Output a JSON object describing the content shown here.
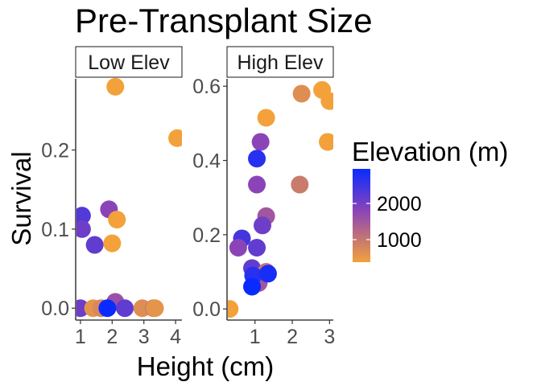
{
  "chart_data": {
    "type": "scatter",
    "title": "Pre-Transplant Size",
    "xlabel": "Height (cm)",
    "ylabel": "Survival",
    "legend": {
      "title": "Elevation (m)",
      "placement": "right",
      "labels": [
        "2000",
        "1000"
      ],
      "color_low": "#f3a13a",
      "color_mid": "#8b44b8",
      "color_high": "#0a2bff"
    },
    "panels": [
      {
        "strip": "Low Elev",
        "xlim": [
          0.85,
          4.2
        ],
        "ylim": [
          -0.015,
          0.29
        ],
        "x_ticks": [
          1,
          2,
          3,
          4
        ],
        "y_ticks": [
          0.0,
          0.1,
          0.2
        ],
        "y_tick_labels": [
          "0.0",
          "0.1",
          "0.2"
        ],
        "points": [
          {
            "x": 2.1,
            "y": 0.28,
            "elev": 500
          },
          {
            "x": 4.05,
            "y": 0.215,
            "elev": 500
          },
          {
            "x": 1.05,
            "y": 0.117,
            "elev": 2400
          },
          {
            "x": 1.05,
            "y": 0.1,
            "elev": 2200
          },
          {
            "x": 1.9,
            "y": 0.125,
            "elev": 2000
          },
          {
            "x": 2.15,
            "y": 0.112,
            "elev": 500
          },
          {
            "x": 1.45,
            "y": 0.08,
            "elev": 2300
          },
          {
            "x": 2.0,
            "y": 0.082,
            "elev": 500
          },
          {
            "x": 1.0,
            "y": 0.0,
            "elev": 2200
          },
          {
            "x": 1.4,
            "y": 0.0,
            "elev": 700
          },
          {
            "x": 1.65,
            "y": 0.0,
            "elev": 900
          },
          {
            "x": 2.1,
            "y": 0.008,
            "elev": 1800
          },
          {
            "x": 2.4,
            "y": 0.0,
            "elev": 2300
          },
          {
            "x": 2.95,
            "y": 0.0,
            "elev": 800
          },
          {
            "x": 3.3,
            "y": 0.0,
            "elev": 1000
          },
          {
            "x": 3.35,
            "y": 0.0,
            "elev": 700
          },
          {
            "x": 1.85,
            "y": 0.0,
            "elev": 2900
          }
        ]
      },
      {
        "strip": "High Elev",
        "xlim": [
          0.25,
          3.1
        ],
        "ylim": [
          -0.03,
          0.62
        ],
        "x_ticks": [
          1,
          2,
          3
        ],
        "y_ticks": [
          0.0,
          0.2,
          0.4,
          0.6
        ],
        "y_tick_labels": [
          "0.0",
          "0.2",
          "0.4",
          "0.6"
        ],
        "points": [
          {
            "x": 0.32,
            "y": 0.0,
            "elev": 500
          },
          {
            "x": 2.25,
            "y": 0.58,
            "elev": 800
          },
          {
            "x": 2.8,
            "y": 0.59,
            "elev": 500
          },
          {
            "x": 3.0,
            "y": 0.56,
            "elev": 500
          },
          {
            "x": 1.3,
            "y": 0.515,
            "elev": 500
          },
          {
            "x": 2.95,
            "y": 0.45,
            "elev": 500
          },
          {
            "x": 1.15,
            "y": 0.45,
            "elev": 2000
          },
          {
            "x": 1.05,
            "y": 0.405,
            "elev": 2700
          },
          {
            "x": 2.2,
            "y": 0.335,
            "elev": 1100
          },
          {
            "x": 1.05,
            "y": 0.335,
            "elev": 2000
          },
          {
            "x": 1.3,
            "y": 0.25,
            "elev": 1700
          },
          {
            "x": 1.2,
            "y": 0.225,
            "elev": 2200
          },
          {
            "x": 0.65,
            "y": 0.19,
            "elev": 2500
          },
          {
            "x": 0.55,
            "y": 0.165,
            "elev": 2000
          },
          {
            "x": 1.05,
            "y": 0.165,
            "elev": 2300
          },
          {
            "x": 0.92,
            "y": 0.11,
            "elev": 2300
          },
          {
            "x": 1.3,
            "y": 0.1,
            "elev": 1200
          },
          {
            "x": 1.1,
            "y": 0.07,
            "elev": 1700
          },
          {
            "x": 0.95,
            "y": 0.09,
            "elev": 2700
          },
          {
            "x": 1.35,
            "y": 0.095,
            "elev": 2800
          },
          {
            "x": 0.92,
            "y": 0.06,
            "elev": 2900
          }
        ]
      }
    ]
  }
}
